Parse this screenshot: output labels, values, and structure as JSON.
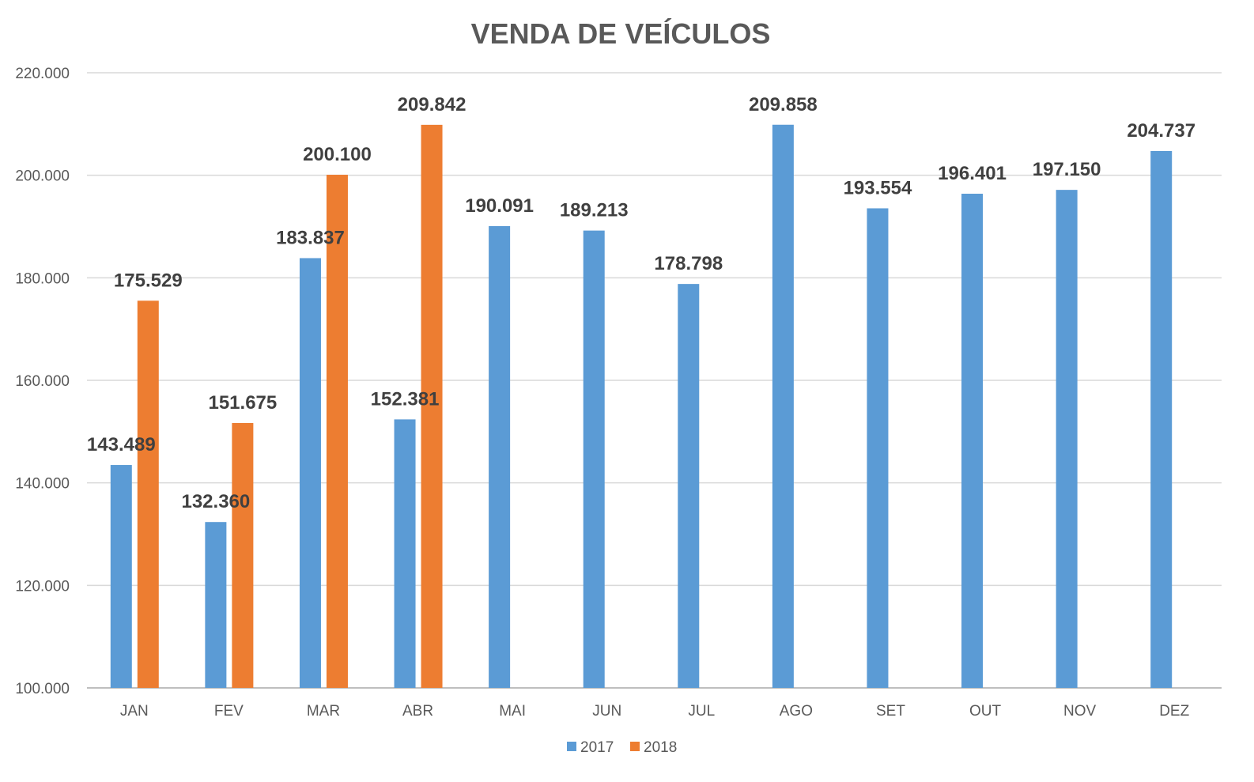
{
  "chart_data": {
    "type": "bar",
    "title": "VENDA DE VEÍCULOS",
    "xlabel": "",
    "ylabel": "",
    "ylim": [
      100000,
      220000
    ],
    "yticks": [
      100000,
      120000,
      140000,
      160000,
      180000,
      200000,
      220000
    ],
    "ytick_labels": [
      "100.000",
      "120.000",
      "140.000",
      "160.000",
      "180.000",
      "200.000",
      "220.000"
    ],
    "grid": true,
    "legend_position": "bottom",
    "categories": [
      "JAN",
      "FEV",
      "MAR",
      "ABR",
      "MAI",
      "JUN",
      "JUL",
      "AGO",
      "SET",
      "OUT",
      "NOV",
      "DEZ"
    ],
    "series": [
      {
        "name": "2017",
        "color": "#5B9BD5",
        "values": [
          143489,
          132360,
          183837,
          152381,
          190091,
          189213,
          178798,
          209858,
          193554,
          196401,
          197150,
          204737
        ],
        "labels": [
          "143.489",
          "132.360",
          "183.837",
          "152.381",
          "190.091",
          "189.213",
          "178.798",
          "209.858",
          "193.554",
          "196.401",
          "197.150",
          "204.737"
        ]
      },
      {
        "name": "2018",
        "color": "#ED7D31",
        "values": [
          175529,
          151675,
          200100,
          209842,
          null,
          null,
          null,
          null,
          null,
          null,
          null,
          null
        ],
        "labels": [
          "175.529",
          "151.675",
          "200.100",
          "209.842",
          null,
          null,
          null,
          null,
          null,
          null,
          null,
          null
        ]
      }
    ]
  }
}
